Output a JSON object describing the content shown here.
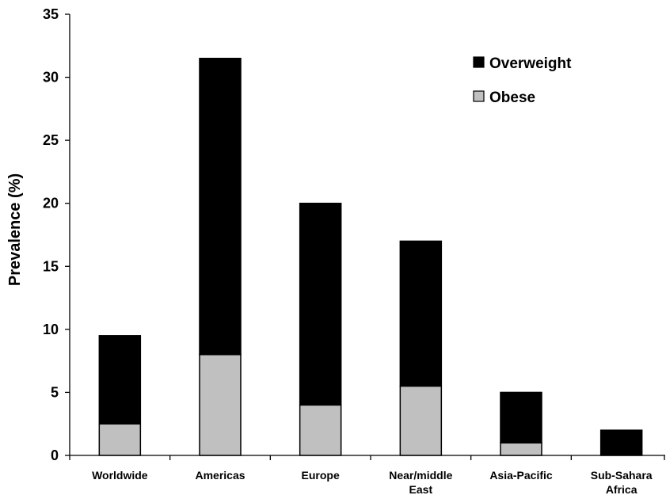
{
  "chart_data": {
    "type": "bar",
    "stacked": true,
    "categories": [
      "Worldwide",
      "Americas",
      "Europe",
      "Near/middle East",
      "Asia-Pacific",
      "Sub-Sahara Africa"
    ],
    "category_lines": [
      [
        "Worldwide"
      ],
      [
        "Americas"
      ],
      [
        "Europe"
      ],
      [
        "Near/middle",
        "East"
      ],
      [
        "Asia-Pacific"
      ],
      [
        "Sub-Sahara",
        "Africa"
      ]
    ],
    "series": [
      {
        "name": "Obese",
        "values": [
          2.5,
          8,
          4,
          5.5,
          1,
          0
        ],
        "color": "#c0c0c0"
      },
      {
        "name": "Overweight",
        "values": [
          7,
          23.5,
          16,
          11.5,
          4,
          2
        ],
        "color": "#000000"
      }
    ],
    "totals": [
      9.5,
      31.5,
      20,
      17,
      5,
      2
    ],
    "ylabel": "Prevalence (%)",
    "xlabel": "",
    "ylim": [
      0,
      35
    ],
    "yticks": [
      0,
      5,
      10,
      15,
      20,
      25,
      30,
      35
    ],
    "grid": false,
    "legend": {
      "position": "top-right",
      "entries": [
        "Overweight",
        "Obese"
      ]
    }
  }
}
